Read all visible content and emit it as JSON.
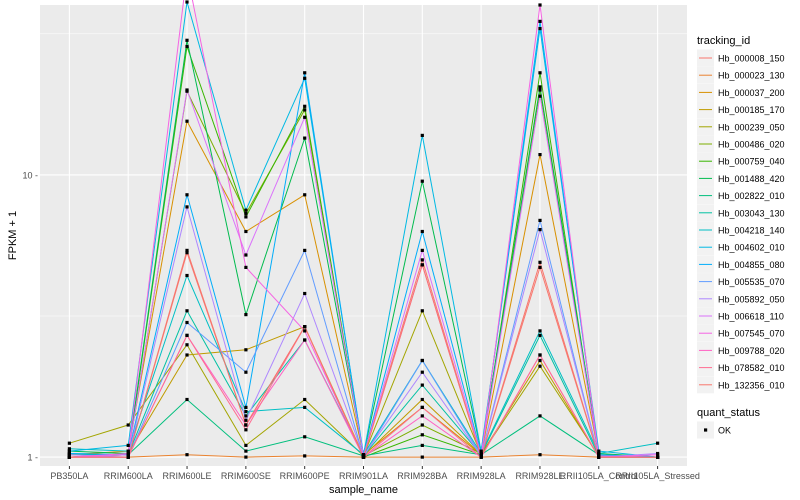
{
  "chart_data": {
    "type": "line",
    "title": "",
    "xlabel": "sample_name",
    "ylabel": "FPKM + 1",
    "y_scale": "log10",
    "ylim": [
      0.93,
      40
    ],
    "y_ticks": [
      1,
      10
    ],
    "y_tick_labels": [
      "1 -",
      "10 -"
    ],
    "grid": true,
    "legend_position": "right",
    "categories": [
      "PB350LA",
      "RRIM600LA",
      "RRIM600LE",
      "RRIM600SE",
      "RRIM600PE",
      "RRIM901LA",
      "RRIM928BA",
      "RRIM928LA",
      "RRIM928LE",
      "RRII105LA_Control",
      "RRII105LA_Stressed"
    ],
    "x_tick_labels": [
      "PB350LA",
      "RRIM600LA",
      "RRIM600LE",
      "RRIM600SE",
      "RRIM600PE",
      "RRIM901LA",
      "RRIM928BA",
      "RRIM928LA",
      "RRIM928LE",
      "RRII105LA_Control",
      "RRII105LA_Stressed"
    ],
    "legend_title": "tracking_id",
    "series": [
      {
        "name": "Hb_000008_150",
        "color": "#F8766D",
        "values": [
          1.0,
          1.0,
          5.4,
          1.3,
          2.9,
          1.0,
          5.0,
          1.0,
          4.9,
          1.0,
          1.0
        ]
      },
      {
        "name": "Hb_000023_130",
        "color": "#EA8331",
        "values": [
          1.0,
          1.0,
          1.02,
          1.0,
          1.01,
          1.0,
          1.0,
          1.0,
          1.02,
          1.0,
          1.0
        ]
      },
      {
        "name": "Hb_000037_200",
        "color": "#D89000",
        "values": [
          1.02,
          1.05,
          15.5,
          6.3,
          8.5,
          1.02,
          1.5,
          1.02,
          11.8,
          1.02,
          1.0
        ]
      },
      {
        "name": "Hb_000185_170",
        "color": "#C09B00",
        "values": [
          1.0,
          1.03,
          2.3,
          2.4,
          2.9,
          1.01,
          1.6,
          1.02,
          2.2,
          1.0,
          1.0
        ]
      },
      {
        "name": "Hb_000239_050",
        "color": "#A3A500",
        "values": [
          1.12,
          1.3,
          2.5,
          1.1,
          1.6,
          1.01,
          3.3,
          1.02,
          2.1,
          1.01,
          1.0
        ]
      },
      {
        "name": "Hb_000486_020",
        "color": "#7CAE00",
        "values": [
          1.0,
          1.02,
          19.8,
          7.3,
          17.0,
          1.01,
          1.3,
          1.03,
          20.0,
          1.01,
          1.0
        ]
      },
      {
        "name": "Hb_000759_040",
        "color": "#39B600",
        "values": [
          1.0,
          1.02,
          28.5,
          7.1,
          17.5,
          1.0,
          1.2,
          1.02,
          23.0,
          1.0,
          1.0
        ]
      },
      {
        "name": "Hb_001488_420",
        "color": "#00BB4E",
        "values": [
          1.05,
          1.03,
          30.0,
          3.2,
          13.5,
          1.02,
          9.5,
          1.05,
          20.5,
          1.03,
          1.0
        ]
      },
      {
        "name": "Hb_002822_010",
        "color": "#00BF7D",
        "values": [
          1.03,
          1.02,
          1.6,
          1.05,
          1.18,
          1.01,
          1.1,
          1.02,
          1.4,
          1.02,
          1.0
        ]
      },
      {
        "name": "Hb_003043_130",
        "color": "#00C1A3",
        "values": [
          1.02,
          1.02,
          3.3,
          1.4,
          2.6,
          1.01,
          1.8,
          1.02,
          2.7,
          1.01,
          1.0
        ]
      },
      {
        "name": "Hb_004218_140",
        "color": "#00BFC4",
        "values": [
          1.07,
          1.05,
          4.4,
          1.45,
          1.5,
          1.02,
          2.2,
          1.03,
          2.8,
          1.03,
          1.12
        ]
      },
      {
        "name": "Hb_004602_010",
        "color": "#00B9E3",
        "values": [
          1.05,
          1.1,
          41.0,
          7.5,
          22.0,
          1.02,
          13.8,
          1.05,
          33.0,
          1.05,
          1.0
        ]
      },
      {
        "name": "Hb_004855_080",
        "color": "#00ADFA",
        "values": [
          1.03,
          1.02,
          8.5,
          1.5,
          23.0,
          1.01,
          6.3,
          1.03,
          35.0,
          1.02,
          1.0
        ]
      },
      {
        "name": "Hb_005535_070",
        "color": "#619CFF",
        "values": [
          1.0,
          1.0,
          3.0,
          2.0,
          5.4,
          1.0,
          2.2,
          1.01,
          6.9,
          1.0,
          1.0
        ]
      },
      {
        "name": "Hb_005892_050",
        "color": "#AE87FF",
        "values": [
          1.02,
          1.0,
          7.7,
          1.35,
          3.8,
          1.01,
          2.0,
          1.01,
          6.4,
          1.0,
          1.03
        ]
      },
      {
        "name": "Hb_006618_110",
        "color": "#DB72FB",
        "values": [
          1.0,
          1.02,
          20.0,
          5.2,
          16.0,
          1.01,
          5.4,
          1.02,
          19.0,
          1.01,
          1.0
        ]
      },
      {
        "name": "Hb_007545_070",
        "color": "#F564E3",
        "values": [
          1.0,
          1.03,
          52.0,
          4.7,
          2.8,
          1.0,
          4.8,
          1.0,
          40.0,
          1.0,
          1.02
        ]
      },
      {
        "name": "Hb_009788_020",
        "color": "#FF61C3",
        "values": [
          1.0,
          1.0,
          2.7,
          1.3,
          2.6,
          1.0,
          1.4,
          1.0,
          2.3,
          1.0,
          1.0
        ]
      },
      {
        "name": "Hb_078582_010",
        "color": "#FF6C91",
        "values": [
          1.0,
          1.0,
          2.7,
          1.25,
          2.9,
          1.0,
          1.5,
          1.0,
          2.3,
          1.0,
          1.0
        ]
      },
      {
        "name": "Hb_132356_010",
        "color": "#F8766D",
        "values": [
          1.0,
          1.0,
          5.3,
          1.3,
          2.9,
          1.0,
          4.8,
          1.0,
          4.7,
          1.0,
          1.0
        ]
      }
    ],
    "quant_status_legend": {
      "title": "quant_status",
      "items": [
        "OK"
      ]
    }
  }
}
